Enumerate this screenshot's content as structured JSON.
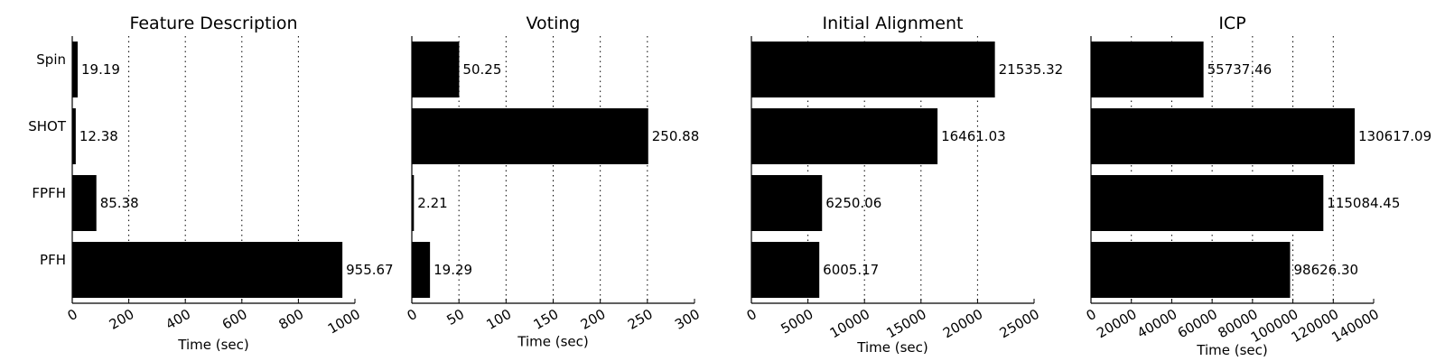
{
  "chart_data": [
    {
      "type": "bar",
      "orientation": "horizontal",
      "title": "Feature Description",
      "xlabel": "Time (sec)",
      "ylabel": "",
      "categories": [
        "Spin",
        "SHOT",
        "FPFH",
        "PFH"
      ],
      "values": [
        19.19,
        12.38,
        85.38,
        955.67
      ],
      "value_labels": [
        "19.19",
        "12.38",
        "85.38",
        "955.67"
      ],
      "xlim": [
        0,
        1000
      ],
      "xticks": [
        0,
        200,
        400,
        600,
        800,
        1000
      ],
      "xtick_labels": [
        "0",
        "200",
        "400",
        "600",
        "800",
        "1000"
      ],
      "grid": "x-dotted",
      "bar_color": "#000000"
    },
    {
      "type": "bar",
      "orientation": "horizontal",
      "title": "Voting",
      "xlabel": "Time (sec)",
      "ylabel": "",
      "categories": [
        "Spin",
        "SHOT",
        "FPFH",
        "PFH"
      ],
      "values": [
        50.25,
        250.88,
        2.21,
        19.29
      ],
      "value_labels": [
        "50.25",
        "250.88",
        "2.21",
        "19.29"
      ],
      "xlim": [
        0,
        300
      ],
      "xticks": [
        0,
        50,
        100,
        150,
        200,
        250,
        300
      ],
      "xtick_labels": [
        "0",
        "50",
        "100",
        "150",
        "200",
        "250",
        "300"
      ],
      "grid": "x-dotted",
      "bar_color": "#000000"
    },
    {
      "type": "bar",
      "orientation": "horizontal",
      "title": "Initial Alignment",
      "xlabel": "Time (sec)",
      "ylabel": "",
      "categories": [
        "Spin",
        "SHOT",
        "FPFH",
        "PFH"
      ],
      "values": [
        21535.32,
        16461.03,
        6250.06,
        6005.17
      ],
      "value_labels": [
        "21535.32",
        "16461.03",
        "6250.06",
        "6005.17"
      ],
      "xlim": [
        0,
        25000
      ],
      "xticks": [
        0,
        5000,
        10000,
        15000,
        20000,
        25000
      ],
      "xtick_labels": [
        "0",
        "5000",
        "10000",
        "15000",
        "20000",
        "25000"
      ],
      "grid": "x-dotted",
      "bar_color": "#000000"
    },
    {
      "type": "bar",
      "orientation": "horizontal",
      "title": "ICP",
      "xlabel": "Time (sec)",
      "ylabel": "",
      "categories": [
        "Spin",
        "SHOT",
        "FPFH",
        "PFH"
      ],
      "values": [
        55737.46,
        130617.09,
        115084.45,
        98626.3
      ],
      "value_labels": [
        "55737.46",
        "130617.09",
        "115084.45",
        "98626.30"
      ],
      "xlim": [
        0,
        140000
      ],
      "xticks": [
        0,
        20000,
        40000,
        60000,
        80000,
        100000,
        120000,
        140000
      ],
      "xtick_labels": [
        "0",
        "20000",
        "40000",
        "60000",
        "80000",
        "100000",
        "120000",
        "140000"
      ],
      "grid": "x-dotted",
      "bar_color": "#000000"
    }
  ]
}
